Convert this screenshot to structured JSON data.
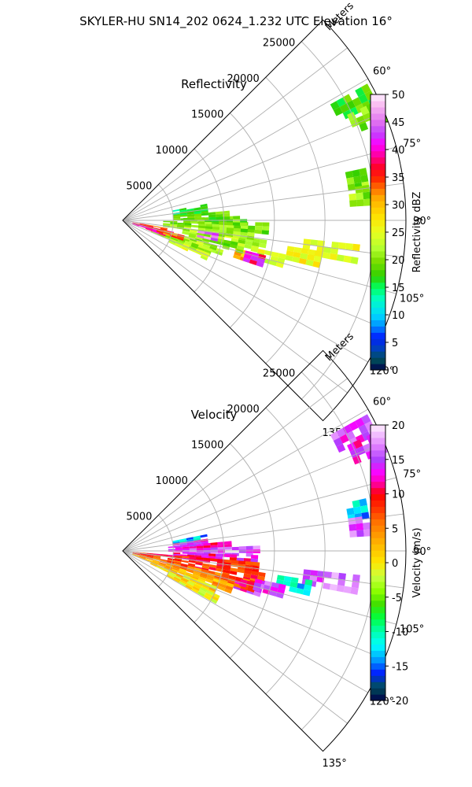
{
  "figure": {
    "title": "SKYLER-HU  SN14_202  0624_1.232 UTC Elevation 16°"
  },
  "chart_data": [
    {
      "type": "heatmap",
      "subtype": "polar-sector",
      "title": "Reflectivity",
      "range_axis_label": "Meters",
      "range_ticks": [
        5000,
        10000,
        15000,
        20000,
        25000
      ],
      "range_max": 28000,
      "azimuth_range_deg": [
        45,
        135
      ],
      "azimuth_ticks": [
        "60°",
        "75°",
        "90°",
        "105°",
        "120°",
        "135°"
      ],
      "grid": true,
      "colorbar": {
        "label": "Reflectivity dBZ",
        "min": 0,
        "max": 50,
        "ticks": [
          0,
          5,
          10,
          15,
          20,
          25,
          30,
          35,
          40,
          45,
          50
        ],
        "stops": [
          [
            0,
            "#00004a"
          ],
          [
            2,
            "#00505a"
          ],
          [
            4,
            "#0040c0"
          ],
          [
            6,
            "#0020ff"
          ],
          [
            8,
            "#0090ff"
          ],
          [
            10,
            "#00d8ff"
          ],
          [
            13,
            "#00ffc0"
          ],
          [
            15,
            "#00ff60"
          ],
          [
            17,
            "#30d000"
          ],
          [
            20,
            "#80e000"
          ],
          [
            22,
            "#b0ff30"
          ],
          [
            25,
            "#e8ff20"
          ],
          [
            28,
            "#ffe000"
          ],
          [
            31,
            "#ffb000"
          ],
          [
            33,
            "#ff7000"
          ],
          [
            35,
            "#ff2000"
          ],
          [
            37,
            "#ff0030"
          ],
          [
            39,
            "#ff00a0"
          ],
          [
            41,
            "#ff00ff"
          ],
          [
            43,
            "#c040ff"
          ],
          [
            45,
            "#e070f0"
          ],
          [
            48,
            "#f8b8f0"
          ],
          [
            50,
            "#fff0ff"
          ]
        ]
      },
      "echo_cells": [
        {
          "az": 63,
          "r0": 23500,
          "r1": 27500,
          "v": 18
        },
        {
          "az": 67,
          "r0": 24500,
          "r1": 27500,
          "v": 20
        },
        {
          "az": 80,
          "r0": 22500,
          "r1": 24500,
          "v": 20
        },
        {
          "az": 84,
          "r0": 22500,
          "r1": 24500,
          "v": 21
        },
        {
          "az": 98,
          "r0": 18000,
          "r1": 23500,
          "v": 25
        },
        {
          "az": 101,
          "r0": 16500,
          "r1": 20000,
          "v": 26
        },
        {
          "az": 104,
          "r0": 13000,
          "r1": 16500,
          "v": 24
        },
        {
          "az": 106,
          "r0": 11500,
          "r1": 14000,
          "v": 30
        },
        {
          "az": 100,
          "r0": 6000,
          "r1": 14000,
          "v": 22
        },
        {
          "az": 103,
          "r0": 6000,
          "r1": 12000,
          "v": 20
        },
        {
          "az": 96,
          "r0": 4000,
          "r1": 13000,
          "v": 21
        },
        {
          "az": 93,
          "r0": 4000,
          "r1": 14000,
          "v": 20
        },
        {
          "az": 90,
          "r0": 6000,
          "r1": 12000,
          "v": 19
        },
        {
          "az": 87,
          "r0": 5000,
          "r1": 10000,
          "v": 18
        },
        {
          "az": 84,
          "r0": 5000,
          "r1": 8500,
          "v": 17
        },
        {
          "az": 81,
          "r0": 5000,
          "r1": 8000,
          "v": 15
        },
        {
          "az": 107,
          "r0": 2000,
          "r1": 10000,
          "v": 22
        },
        {
          "az": 110,
          "r0": 3000,
          "r1": 9000,
          "v": 21
        },
        {
          "az": 113,
          "r0": 5000,
          "r1": 9000,
          "v": 24
        },
        {
          "az": 105,
          "r0": 1000,
          "r1": 5000,
          "v": 38
        },
        {
          "az": 108,
          "r0": 1000,
          "r1": 4500,
          "v": 40
        },
        {
          "az": 102,
          "r0": 1000,
          "r1": 4000,
          "v": 35
        },
        {
          "az": 100,
          "r0": 7500,
          "r1": 9000,
          "v": 45
        },
        {
          "az": 106,
          "r0": 3500,
          "r1": 6000,
          "v": 33
        },
        {
          "az": 106,
          "r0": 12500,
          "r1": 14000,
          "v": 40
        }
      ]
    },
    {
      "type": "heatmap",
      "subtype": "polar-sector",
      "title": "Velocity",
      "range_axis_label": "Meters",
      "range_ticks": [
        5000,
        10000,
        15000,
        20000,
        25000
      ],
      "range_max": 28000,
      "azimuth_range_deg": [
        45,
        135
      ],
      "azimuth_ticks": [
        "60°",
        "75°",
        "90°",
        "105°",
        "120°",
        "135°"
      ],
      "grid": true,
      "colorbar": {
        "label": "Velocity (m/s)",
        "min": -20,
        "max": 20,
        "ticks": [
          -20,
          -15,
          -10,
          -5,
          0,
          5,
          10,
          15,
          20
        ],
        "stops": [
          [
            -20,
            "#00004a"
          ],
          [
            -18,
            "#00505a"
          ],
          [
            -16,
            "#0020ff"
          ],
          [
            -14,
            "#00a0ff"
          ],
          [
            -12,
            "#00ffff"
          ],
          [
            -10,
            "#00ffb0"
          ],
          [
            -8,
            "#00ff40"
          ],
          [
            -6,
            "#40e000"
          ],
          [
            -4,
            "#90ff00"
          ],
          [
            -2,
            "#c8ff40"
          ],
          [
            0,
            "#ffe800"
          ],
          [
            3,
            "#ffb000"
          ],
          [
            6,
            "#ff7000"
          ],
          [
            8,
            "#ff3000"
          ],
          [
            10,
            "#ff0000"
          ],
          [
            11,
            "#ff0070"
          ],
          [
            12,
            "#ff00c0"
          ],
          [
            13,
            "#ff00ff"
          ],
          [
            15,
            "#b040ff"
          ],
          [
            17,
            "#e080ff"
          ],
          [
            20,
            "#fff0ff"
          ]
        ]
      },
      "echo_cells": [
        {
          "az": 63,
          "r0": 23500,
          "r1": 27500,
          "v": 15
        },
        {
          "az": 67,
          "r0": 24500,
          "r1": 27500,
          "v": 14
        },
        {
          "az": 80,
          "r0": 22500,
          "r1": 24500,
          "v": -13
        },
        {
          "az": 84,
          "r0": 22500,
          "r1": 24500,
          "v": 15
        },
        {
          "az": 98,
          "r0": 18000,
          "r1": 23500,
          "v": 16
        },
        {
          "az": 101,
          "r0": 15500,
          "r1": 19000,
          "v": -12
        },
        {
          "az": 104,
          "r0": 13000,
          "r1": 16500,
          "v": 15
        },
        {
          "az": 106,
          "r0": 11500,
          "r1": 14000,
          "v": 14
        },
        {
          "az": 81,
          "r0": 5000,
          "r1": 8000,
          "v": -13
        },
        {
          "az": 84,
          "r0": 5000,
          "r1": 8500,
          "v": 14
        },
        {
          "az": 87,
          "r0": 4500,
          "r1": 11000,
          "v": 13
        },
        {
          "az": 90,
          "r0": 4500,
          "r1": 13000,
          "v": 15
        },
        {
          "az": 94,
          "r0": 5000,
          "r1": 13000,
          "v": 12
        },
        {
          "az": 97,
          "r0": 1000,
          "r1": 13000,
          "v": 9
        },
        {
          "az": 101,
          "r0": 1000,
          "r1": 14000,
          "v": 8
        },
        {
          "az": 105,
          "r0": 1000,
          "r1": 13000,
          "v": 6
        },
        {
          "az": 109,
          "r0": 1000,
          "r1": 11500,
          "v": 3
        },
        {
          "az": 113,
          "r0": 3000,
          "r1": 10000,
          "v": 1
        },
        {
          "az": 117,
          "r0": 5000,
          "r1": 10000,
          "v": 0
        },
        {
          "az": 104,
          "r0": 12000,
          "r1": 14000,
          "v": 13
        }
      ]
    }
  ]
}
